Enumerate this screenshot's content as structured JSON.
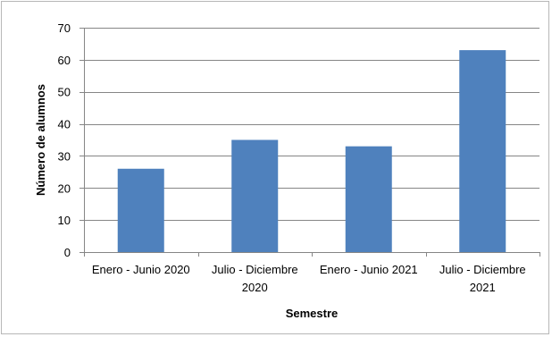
{
  "chart_data": {
    "type": "bar",
    "categories": [
      [
        "Enero - Junio 2020"
      ],
      [
        "Julio - Diciembre",
        "2020"
      ],
      [
        "Enero - Junio 2021"
      ],
      [
        "Julio - Diciembre",
        "2021"
      ]
    ],
    "series": [
      {
        "values": [
          26,
          35,
          33,
          63
        ]
      }
    ],
    "xlabel": "Semestre",
    "ylabel": "Número de alumnos",
    "ylim": [
      0,
      70
    ],
    "yticks": [
      0,
      10,
      20,
      30,
      40,
      50,
      60,
      70
    ],
    "grid": true,
    "legend": "none",
    "bar_color": "#4f81bd",
    "grid_color": "#868686"
  }
}
